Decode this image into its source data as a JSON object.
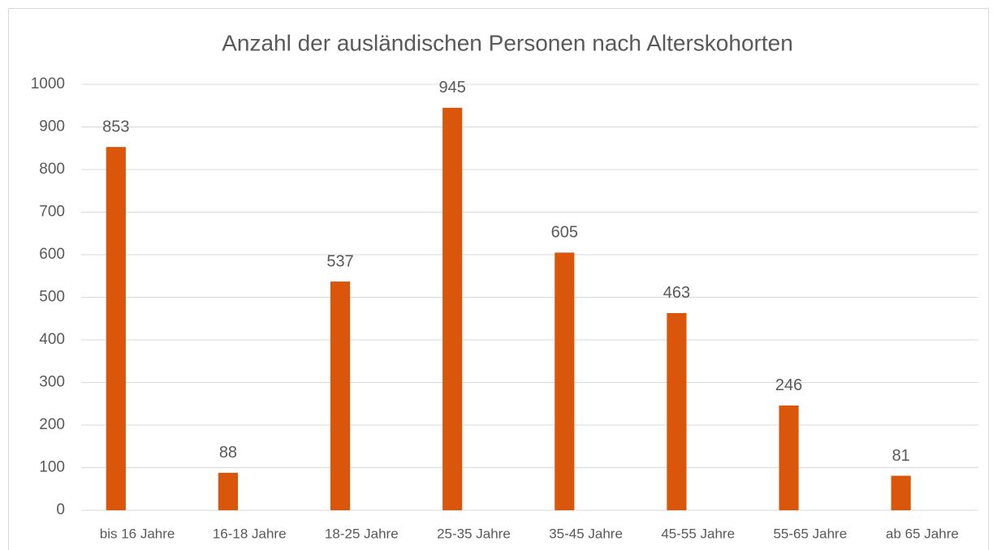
{
  "chart_data": {
    "type": "bar",
    "title": "Anzahl der ausländischen Personen nach Alterskohorten",
    "categories": [
      "bis 16 Jahre",
      "16-18 Jahre",
      "18-25 Jahre",
      "25-35 Jahre",
      "35-45 Jahre",
      "45-55 Jahre",
      "55-65 Jahre",
      "ab 65 Jahre"
    ],
    "values": [
      853,
      88,
      537,
      945,
      605,
      463,
      246,
      81
    ],
    "color": "#d9560b",
    "ylim": [
      0,
      1000
    ],
    "yticks": [
      0,
      100,
      200,
      300,
      400,
      500,
      600,
      700,
      800,
      900,
      1000
    ],
    "grid": true
  }
}
